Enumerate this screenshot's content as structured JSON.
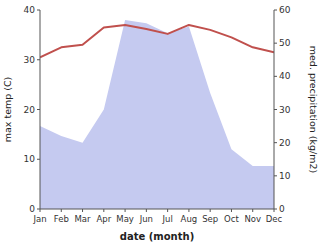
{
  "chart_data": {
    "type": "line",
    "xlabel": "date (month)",
    "ylabel": "max temp (C)",
    "y2label": "med. precipitation (kg/m2)",
    "categories": [
      "Jan",
      "Feb",
      "Mar",
      "Apr",
      "May",
      "Jun",
      "Jul",
      "Aug",
      "Sep",
      "Oct",
      "Nov",
      "Dec"
    ],
    "series": [
      {
        "type": "area",
        "axis": "y2",
        "color": "#c5caf0",
        "values": [
          25,
          22,
          20,
          30,
          57,
          56,
          53,
          55,
          35,
          18,
          13,
          13
        ]
      },
      {
        "type": "line",
        "color": "#c0504d",
        "values": [
          30.5,
          32.5,
          33.0,
          36.5,
          37.0,
          36.2,
          35.2,
          37.0,
          36.0,
          34.5,
          32.5,
          31.5
        ]
      }
    ],
    "ylim": [
      0,
      40
    ],
    "yticks": [
      0,
      10,
      20,
      30,
      40
    ],
    "y2lim": [
      0,
      60
    ],
    "y2ticks": [
      0,
      10,
      20,
      30,
      40,
      50,
      60
    ],
    "grid": false
  }
}
